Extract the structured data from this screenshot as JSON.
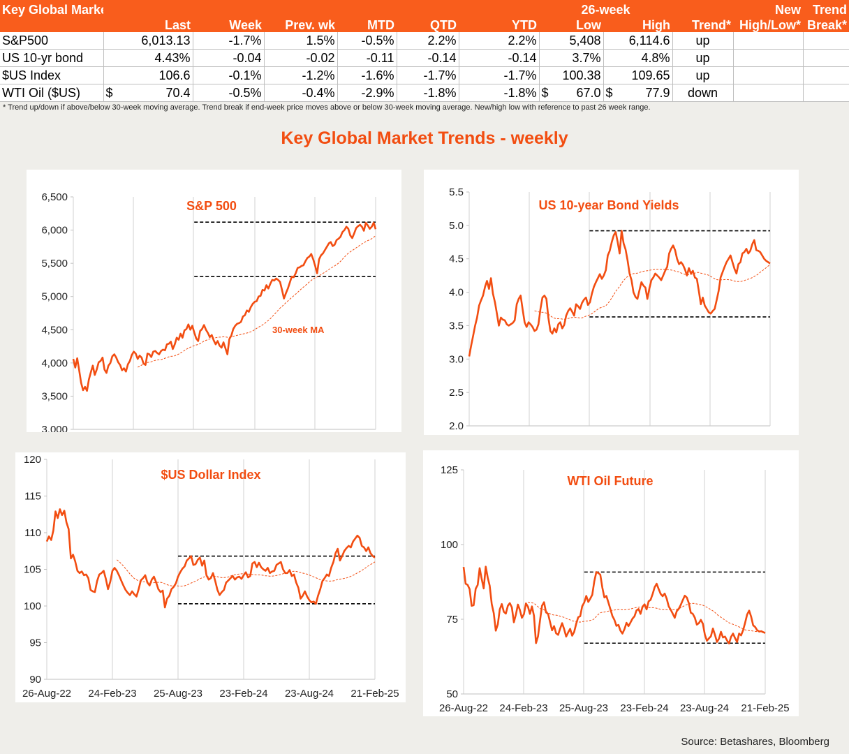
{
  "table": {
    "title": "Key Global Markets",
    "col_group_26wk": "26-week",
    "col_new_hl_1": "New",
    "col_trend_break_1": "Trend",
    "columns": [
      "Last",
      "Week",
      "Prev. wk",
      "MTD",
      "QTD",
      "YTD",
      "Low",
      "High",
      "Trend*",
      "High/Low*",
      "Break*"
    ],
    "rows": [
      {
        "name": "S&P500",
        "last_cur": "",
        "last": "6,013.13",
        "week": "-1.7%",
        "prev": "1.5%",
        "mtd": "-0.5%",
        "qtd": "2.2%",
        "ytd": "2.2%",
        "low_cur": "",
        "low": "5,408",
        "high_cur": "",
        "high": "6,114.6",
        "trend": "up",
        "newhl": "",
        "brk": ""
      },
      {
        "name": "US 10-yr bond",
        "last_cur": "",
        "last": "4.43%",
        "week": "-0.04",
        "prev": "-0.02",
        "mtd": "-0.11",
        "qtd": "-0.14",
        "ytd": "-0.14",
        "low_cur": "",
        "low": "3.7%",
        "high_cur": "",
        "high": "4.8%",
        "trend": "up",
        "newhl": "",
        "brk": ""
      },
      {
        "name": "$US Index",
        "last_cur": "",
        "last": "106.6",
        "week": "-0.1%",
        "prev": "-1.2%",
        "mtd": "-1.6%",
        "qtd": "-1.7%",
        "ytd": "-1.7%",
        "low_cur": "",
        "low": "100.38",
        "high_cur": "",
        "high": "109.65",
        "trend": "up",
        "newhl": "",
        "brk": ""
      },
      {
        "name": "WTI Oil ($US)",
        "last_cur": "$",
        "last": "70.4",
        "week": "-0.5%",
        "prev": "-0.4%",
        "mtd": "-2.9%",
        "qtd": "-1.8%",
        "ytd": "-1.8%",
        "low_cur": "$",
        "low": "67.0",
        "high_cur": "$",
        "high": "77.9",
        "trend": "down",
        "newhl": "",
        "brk": ""
      }
    ],
    "footnote": "*  Trend up/down if above/below 30-week moving average. Trend break if end-week price moves above or below 30-week moving average.  New/high low with reference to past 26 week range."
  },
  "main_title": "Key Global Market Trends - weekly",
  "source": "Source:  Betashares, Bloomberg",
  "colors": {
    "accent": "#f24d11",
    "header_bg": "#f95d1c",
    "line": "#f24d11",
    "ma": "#f24d11",
    "band": "#000000"
  },
  "chart_data": [
    {
      "type": "line",
      "title": "S&P 500",
      "annotation": "30-week MA",
      "x_start": "26-Aug-22",
      "x_end": "21-Feb-25",
      "xticks": [],
      "ylim": [
        3000,
        6500
      ],
      "yticks": [
        3000,
        3500,
        4000,
        4500,
        5000,
        5500,
        6000,
        6500
      ],
      "ytick_labels": [
        "3,000",
        "3,500",
        "4,000",
        "4,500",
        "5,000",
        "5,500",
        "6,000",
        "6,500"
      ],
      "grid": false,
      "band_low": 5300,
      "band_high": 6120,
      "band_start_frac": 0.4,
      "ma_start_frac": 0.215,
      "series": [
        {
          "values": [
            4060,
            3930,
            4070,
            3890,
            3700,
            3590,
            3640,
            3580,
            3750,
            3860,
            3960,
            3820,
            3900,
            4010,
            4030,
            4080,
            3900,
            3850,
            3960,
            4000,
            4100,
            4130,
            4080,
            4010,
            3970,
            3890,
            3920,
            3870,
            3980,
            4030,
            4120,
            4170,
            4140,
            4060,
            4110,
            4080,
            3990,
            3970,
            4140,
            4130,
            4090,
            4170,
            4180,
            4150,
            4130,
            4180,
            4200,
            4190,
            4280,
            4290,
            4320,
            4210,
            4280,
            4380,
            4350,
            4440,
            4380,
            4490,
            4510,
            4580,
            4500,
            4560,
            4460,
            4370,
            4330,
            4480,
            4510,
            4570,
            4500,
            4450,
            4390,
            4420,
            4340,
            4280,
            4330,
            4260,
            4230,
            4310,
            4220,
            4130,
            4360,
            4410,
            4510,
            4560,
            4590,
            4600,
            4620,
            4700,
            4720,
            4790,
            4770,
            4840,
            4890,
            4920,
            4930,
            5000,
            5010,
            5100,
            5090,
            5170,
            5120,
            5190,
            5250,
            5240,
            5270,
            5250,
            5220,
            5100,
            4970,
            5050,
            5120,
            5210,
            5300,
            5290,
            5350,
            5430,
            5440,
            5460,
            5470,
            5530,
            5580,
            5600,
            5640,
            5560,
            5460,
            5350,
            5560,
            5620,
            5650,
            5700,
            5750,
            5800,
            5820,
            5760,
            5780,
            5850,
            5870,
            5900,
            5970,
            6000,
            6050,
            6020,
            5920,
            5880,
            5950,
            6030,
            6060,
            6080,
            6050,
            5990,
            6110,
            6070,
            6020,
            6050,
            6110,
            6013
          ]
        }
      ]
    },
    {
      "type": "line",
      "title": "US 10-year Bond Yields",
      "x_start": "26-Aug-22",
      "x_end": "21-Feb-25",
      "ylim": [
        2.0,
        5.5
      ],
      "yticks": [
        2.0,
        2.5,
        3.0,
        3.5,
        4.0,
        4.5,
        5.0,
        5.5
      ],
      "ytick_labels": [
        "2.0",
        "2.5",
        "3.0",
        "3.5",
        "4.0",
        "4.5",
        "5.0",
        "5.5"
      ],
      "grid": false,
      "band_low": 3.63,
      "band_high": 4.92,
      "band_start_frac": 0.4,
      "ma_start_frac": 0.215,
      "series": [
        {
          "values": [
            3.04,
            3.2,
            3.35,
            3.5,
            3.62,
            3.8,
            3.88,
            3.95,
            4.08,
            4.17,
            4.05,
            4.21,
            3.98,
            3.85,
            3.68,
            3.5,
            3.62,
            3.59,
            3.58,
            3.52,
            3.5,
            3.52,
            3.54,
            3.58,
            3.82,
            3.9,
            3.95,
            3.74,
            3.55,
            3.48,
            3.55,
            3.52,
            3.48,
            3.42,
            3.44,
            3.52,
            3.75,
            3.92,
            3.95,
            3.9,
            3.62,
            3.42,
            3.38,
            3.46,
            3.4,
            3.52,
            3.55,
            3.46,
            3.51,
            3.65,
            3.72,
            3.76,
            3.71,
            3.65,
            3.82,
            3.79,
            3.75,
            3.84,
            3.89,
            3.92,
            3.81,
            3.85,
            3.98,
            4.08,
            4.15,
            4.21,
            4.27,
            4.2,
            4.25,
            4.33,
            4.55,
            4.62,
            4.75,
            4.85,
            4.9,
            4.75,
            4.58,
            4.92,
            4.73,
            4.64,
            4.48,
            4.28,
            4.18,
            4.0,
            3.93,
            3.9,
            4.03,
            4.15,
            4.1,
            4.07,
            3.9,
            4.05,
            4.18,
            4.22,
            4.28,
            4.25,
            4.22,
            4.18,
            4.25,
            4.32,
            4.38,
            4.58,
            4.65,
            4.7,
            4.63,
            4.5,
            4.42,
            4.45,
            4.41,
            4.34,
            4.25,
            4.36,
            4.28,
            4.32,
            4.22,
            4.2,
            4.02,
            3.82,
            3.92,
            3.8,
            3.75,
            3.7,
            3.68,
            3.72,
            3.75,
            3.88,
            4.02,
            4.22,
            4.3,
            4.38,
            4.45,
            4.5,
            4.55,
            4.45,
            4.35,
            4.28,
            4.42,
            4.45,
            4.58,
            4.6,
            4.65,
            4.58,
            4.62,
            4.72,
            4.78,
            4.63,
            4.62,
            4.6,
            4.55,
            4.5,
            4.47,
            4.45,
            4.43
          ]
        }
      ]
    },
    {
      "type": "line",
      "title": "$US Dollar Index",
      "x_start": "26-Aug-22",
      "x_end": "21-Feb-25",
      "xticks": [
        "26-Aug-22",
        "24-Feb-23",
        "25-Aug-23",
        "23-Feb-24",
        "23-Aug-24",
        "21-Feb-25"
      ],
      "ylim": [
        90,
        120
      ],
      "yticks": [
        90,
        95,
        100,
        105,
        110,
        115,
        120
      ],
      "ytick_labels": [
        "90",
        "95",
        "100",
        "105",
        "110",
        "115",
        "120"
      ],
      "grid": false,
      "band_low": 100.3,
      "band_high": 106.8,
      "band_start_frac": 0.4,
      "ma_start_frac": 0.215,
      "series": [
        {
          "values": [
            108.8,
            109.5,
            109.0,
            110.3,
            112.9,
            112.0,
            113.2,
            112.4,
            113.0,
            111.4,
            110.5,
            106.5,
            107.0,
            106.1,
            104.8,
            104.5,
            104.7,
            104.2,
            104.3,
            103.8,
            102.2,
            102.0,
            101.9,
            103.4,
            104.3,
            104.5,
            104.8,
            103.7,
            102.3,
            103.3,
            104.8,
            105.2,
            104.8,
            104.2,
            103.5,
            102.8,
            102.2,
            101.8,
            101.5,
            102.0,
            101.6,
            101.3,
            102.3,
            103.5,
            103.8,
            104.2,
            103.2,
            102.8,
            103.6,
            104.0,
            103.2,
            102.3,
            101.9,
            102.1,
            99.8,
            101.0,
            101.4,
            102.3,
            102.6,
            103.1,
            104.0,
            104.6,
            105.1,
            105.4,
            106.2,
            106.5,
            106.8,
            105.6,
            105.7,
            106.3,
            106.6,
            105.5,
            106.2,
            104.2,
            103.6,
            103.8,
            104.5,
            103.4,
            102.2,
            101.5,
            101.9,
            102.2,
            103.2,
            103.5,
            103.8,
            104.1,
            103.6,
            103.9,
            104.0,
            103.7,
            104.2,
            104.6,
            103.9,
            104.1,
            105.8,
            106.0,
            105.3,
            105.9,
            105.3,
            105.0,
            104.8,
            105.2,
            104.5,
            104.7,
            104.8,
            105.6,
            105.8,
            106.0,
            105.0,
            104.5,
            104.5,
            104.9,
            104.1,
            104.3,
            103.2,
            102.5,
            101.0,
            101.4,
            102.0,
            101.3,
            100.8,
            100.5,
            100.6,
            100.3,
            101.4,
            102.3,
            103.4,
            103.8,
            104.3,
            104.1,
            105.2,
            106.0,
            107.2,
            107.8,
            106.2,
            106.8,
            107.5,
            107.9,
            108.2,
            108.0,
            108.8,
            109.2,
            109.6,
            109.3,
            108.2,
            108.0,
            107.5,
            108.0,
            107.2,
            106.8,
            106.6
          ]
        }
      ]
    },
    {
      "type": "line",
      "title": "WTI Oil Future",
      "x_start": "26-Aug-22",
      "x_end": "21-Feb-25",
      "xticks": [
        "26-Aug-22",
        "24-Feb-23",
        "25-Aug-23",
        "23-Feb-24",
        "23-Aug-24",
        "21-Feb-25"
      ],
      "ylim": [
        50,
        125
      ],
      "yticks": [
        50,
        75,
        100,
        125
      ],
      "ytick_labels": [
        "50",
        "75",
        "100",
        "125"
      ],
      "grid": false,
      "band_low": 67,
      "band_high": 90.8,
      "band_start_frac": 0.4,
      "ma_start_frac": 0.215,
      "series": [
        {
          "values": [
            92.5,
            86.9,
            86.5,
            85.1,
            79.5,
            79.7,
            85.2,
            86.5,
            92.1,
            88.5,
            85.3,
            92.6,
            88.9,
            86.2,
            80.1,
            77.0,
            71.2,
            73.3,
            78.3,
            80.1,
            77.5,
            76.9,
            79.5,
            80.4,
            79.0,
            74.0,
            76.6,
            79.9,
            78.1,
            75.5,
            76.7,
            80.3,
            79.2,
            76.8,
            79.3,
            76.2,
            67.0,
            69.3,
            74.5,
            79.5,
            80.7,
            77.3,
            76.8,
            74.1,
            71.3,
            72.7,
            70.3,
            69.8,
            71.8,
            73.7,
            71.7,
            69.2,
            70.6,
            71.8,
            69.5,
            70.8,
            73.5,
            75.7,
            76.0,
            79.4,
            80.6,
            82.8,
            80.8,
            81.9,
            83.2,
            87.7,
            90.8,
            90.5,
            89.9,
            85.6,
            82.3,
            82.8,
            80.6,
            78.4,
            76.1,
            74.8,
            72.8,
            73.1,
            71.2,
            70.2,
            71.7,
            73.8,
            72.7,
            73.9,
            75.2,
            76.0,
            78.0,
            78.4,
            76.8,
            79.2,
            80.0,
            78.3,
            81.0,
            81.5,
            83.4,
            85.7,
            86.9,
            85.1,
            83.5,
            82.7,
            83.6,
            81.9,
            79.3,
            78.2,
            76.9,
            75.5,
            77.7,
            78.5,
            79.8,
            81.4,
            82.9,
            82.3,
            80.4,
            77.2,
            76.8,
            75.5,
            73.2,
            73.7,
            74.8,
            73.5,
            69.8,
            67.8,
            68.6,
            69.3,
            71.9,
            69.8,
            67.4,
            68.5,
            70.8,
            68.9,
            69.2,
            67.9,
            66.9,
            69.1,
            70.2,
            68.7,
            67.4,
            70.2,
            69.6,
            71.3,
            73.8,
            76.6,
            77.9,
            75.9,
            73.0,
            72.4,
            71.3,
            70.9,
            71.0,
            70.7,
            70.4
          ]
        }
      ]
    }
  ]
}
